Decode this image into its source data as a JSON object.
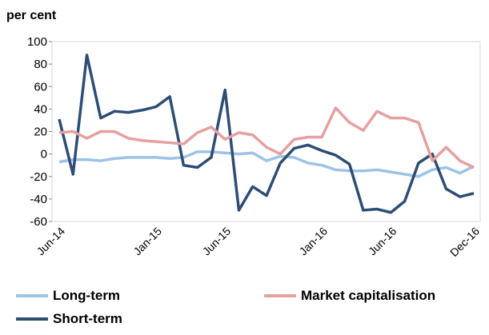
{
  "chart_data": {
    "type": "line",
    "y_label": "per cent",
    "categories": [
      "Jun-14",
      null,
      null,
      null,
      null,
      null,
      null,
      "Jan-15",
      null,
      null,
      null,
      null,
      "Jun-15",
      null,
      null,
      null,
      null,
      null,
      null,
      "Jan-16",
      null,
      null,
      null,
      null,
      "Jun-16",
      null,
      null,
      null,
      null,
      null,
      "Dec-16"
    ],
    "series": [
      {
        "name": "Long-term",
        "color": "#9dc3e6",
        "values": [
          -7,
          -5,
          -5,
          -6,
          -4,
          -3,
          -3,
          -3,
          -4,
          -3,
          2,
          2,
          1,
          0,
          1,
          -6,
          -2,
          -3,
          -8,
          -10,
          -14,
          -15,
          -15,
          -14,
          -16,
          -18,
          -20,
          -14,
          -12,
          -17,
          -11
        ]
      },
      {
        "name": "Market capitalisation",
        "color": "#e6a0a0",
        "values": [
          19,
          20,
          14,
          20,
          20,
          14,
          12,
          11,
          10,
          9,
          19,
          24,
          13,
          19,
          17,
          6,
          0,
          13,
          15,
          15,
          41,
          28,
          21,
          38,
          32,
          32,
          28,
          -6,
          6,
          -6,
          -12
        ]
      },
      {
        "name": "Short-term",
        "color": "#2e4d74",
        "values": [
          31,
          -18,
          88,
          32,
          38,
          37,
          39,
          42,
          51,
          -10,
          -12,
          -3,
          57,
          -50,
          -29,
          -37,
          -8,
          5,
          8,
          3,
          -1,
          -9,
          -50,
          -49,
          -52,
          -42,
          -8,
          0,
          -31,
          -38,
          -35
        ]
      }
    ],
    "ylim": [
      -60,
      100
    ],
    "yticks": [
      -60,
      -40,
      -20,
      0,
      20,
      40,
      60,
      80,
      100
    ],
    "grid": false
  }
}
